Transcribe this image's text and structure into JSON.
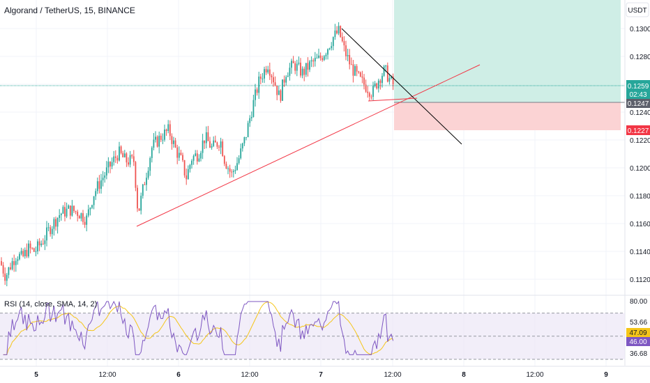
{
  "header": {
    "title": "Algorand / TetherUS, 15, BINANCE",
    "currency_button": "USDT",
    "rsi_title": "RSI (14, close, SMA, 14, 2)"
  },
  "colors": {
    "up": "#26a69a",
    "down": "#ef5350",
    "rsi_line": "#7e57c2",
    "rsi_sma": "#f5c518",
    "trendline_support": "#f23645",
    "trendline_resistance": "#000000",
    "target_zone": "#cfeee6",
    "stop_zone": "#fbd3d4"
  },
  "price_axis": {
    "ticks": [
      "0.1300",
      "0.1280",
      "0.1240",
      "0.1220",
      "0.1200",
      "0.1180",
      "0.1160",
      "0.1140",
      "0.1120"
    ]
  },
  "badges": {
    "last_price": "0.1259",
    "countdown": "02:43",
    "entry": "0.1247",
    "stop": "0.1227"
  },
  "rsi_axis": {
    "ticks": [
      "80.00",
      "53.66",
      "36.68"
    ],
    "rsi_value": "46.00",
    "sma_value": "47.09"
  },
  "time_axis": {
    "ticks": [
      "5",
      "12:00",
      "6",
      "12:00",
      "7",
      "12:00",
      "8",
      "12:00",
      "9"
    ]
  },
  "chart_data": {
    "type": "candlestick",
    "title": "Algorand / TetherUS, 15, BINANCE",
    "ylim": [
      0.111,
      0.131
    ],
    "anchors": [
      [
        0,
        0.1133
      ],
      [
        8,
        0.1122
      ],
      [
        16,
        0.1131
      ],
      [
        24,
        0.1138
      ],
      [
        32,
        0.1135
      ],
      [
        40,
        0.1142
      ],
      [
        50,
        0.114
      ],
      [
        62,
        0.1148
      ],
      [
        72,
        0.1157
      ],
      [
        86,
        0.1167
      ],
      [
        100,
        0.117
      ],
      [
        112,
        0.1168
      ],
      [
        124,
        0.1163
      ],
      [
        134,
        0.1181
      ],
      [
        146,
        0.1192
      ],
      [
        156,
        0.12
      ],
      [
        170,
        0.1211
      ],
      [
        180,
        0.1205
      ],
      [
        192,
        0.1205
      ],
      [
        198,
        0.1167
      ],
      [
        208,
        0.1192
      ],
      [
        218,
        0.1215
      ],
      [
        232,
        0.1223
      ],
      [
        242,
        0.1227
      ],
      [
        252,
        0.1213
      ],
      [
        260,
        0.1205
      ],
      [
        267,
        0.1193
      ],
      [
        275,
        0.1207
      ],
      [
        284,
        0.121
      ],
      [
        294,
        0.1222
      ],
      [
        304,
        0.1214
      ],
      [
        316,
        0.122
      ],
      [
        322,
        0.1206
      ],
      [
        332,
        0.1195
      ],
      [
        342,
        0.1206
      ],
      [
        352,
        0.1222
      ],
      [
        362,
        0.1244
      ],
      [
        372,
        0.1263
      ],
      [
        384,
        0.1275
      ],
      [
        392,
        0.1264
      ],
      [
        401,
        0.125
      ],
      [
        410,
        0.1269
      ],
      [
        422,
        0.1274
      ],
      [
        434,
        0.1268
      ],
      [
        446,
        0.1275
      ],
      [
        458,
        0.1278
      ],
      [
        468,
        0.1285
      ],
      [
        478,
        0.1294
      ],
      [
        486,
        0.1298
      ],
      [
        494,
        0.1284
      ],
      [
        504,
        0.1272
      ],
      [
        516,
        0.1263
      ],
      [
        526,
        0.1258
      ],
      [
        534,
        0.1254
      ],
      [
        544,
        0.1265
      ],
      [
        552,
        0.127
      ],
      [
        560,
        0.1262
      ],
      [
        565,
        0.1259
      ]
    ],
    "rsi": {
      "ylim": [
        30,
        85
      ],
      "levels": [
        70,
        50,
        30
      ],
      "current": 46.0,
      "sma_current": 47.09
    },
    "position": {
      "entry": 0.1247,
      "stop": 0.1227,
      "target": 0.131,
      "last": 0.1259
    },
    "trendlines": [
      {
        "name": "support",
        "from": [
          196,
          0.1158
        ],
        "to": [
          688,
          0.1274
        ]
      },
      {
        "name": "resistance",
        "from": [
          490,
          0.13
        ],
        "to": [
          662,
          0.1217
        ]
      },
      {
        "name": "wedge-base",
        "from": [
          528,
          0.1248
        ],
        "to": [
          598,
          0.125
        ]
      }
    ]
  }
}
